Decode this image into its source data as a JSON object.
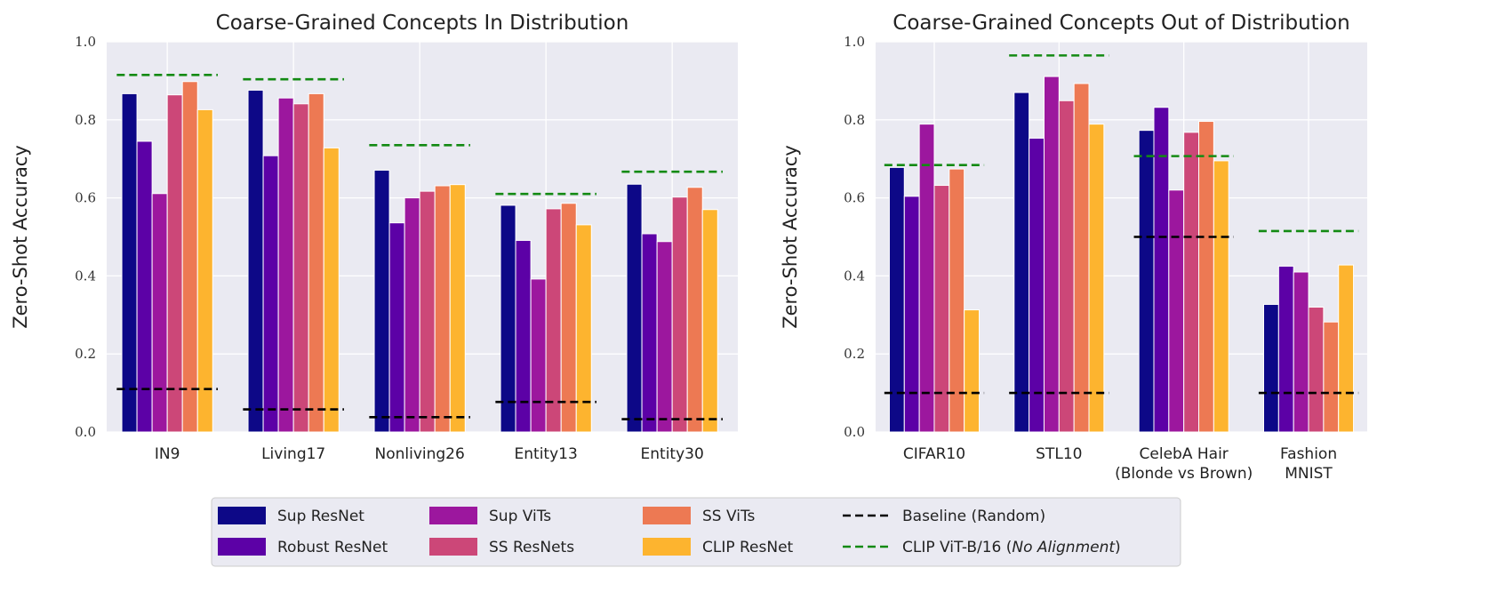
{
  "colors": {
    "background": "#eaeaf2",
    "grid": "#ffffff",
    "series": [
      "#0d0887",
      "#5c01a6",
      "#9c179e",
      "#cc4778",
      "#ed7953",
      "#fdb42f"
    ],
    "baseline": "#000000",
    "clip_vit": "#138a13"
  },
  "legend": {
    "placement": "bottom-center",
    "items": [
      {
        "label": "Sup ResNet",
        "kind": "patch",
        "color": "#0d0887"
      },
      {
        "label": "Robust ResNet",
        "kind": "patch",
        "color": "#5c01a6"
      },
      {
        "label": "Sup ViTs",
        "kind": "patch",
        "color": "#9c179e"
      },
      {
        "label": "SS ResNets",
        "kind": "patch",
        "color": "#cc4778"
      },
      {
        "label": "SS ViTs",
        "kind": "patch",
        "color": "#ed7953"
      },
      {
        "label": "CLIP ResNet",
        "kind": "patch",
        "color": "#fdb42f"
      },
      {
        "label": "Baseline (Random)",
        "kind": "dashed",
        "color": "#000000"
      },
      {
        "label": "CLIP ViT-B/16 (",
        "italic": "No Alignment",
        "suffix": ")",
        "kind": "dashed",
        "color": "#138a13"
      }
    ]
  },
  "chart_data": [
    {
      "type": "bar",
      "title": "Coarse-Grained Concepts In Distribution",
      "ylabel": "Zero-Shot Accuracy",
      "xlabel": "",
      "ylim": [
        0,
        1.0
      ],
      "yticks": [
        "0.0",
        "0.2",
        "0.4",
        "0.6",
        "0.8",
        "1.0"
      ],
      "grid": true,
      "categories": [
        [
          "IN9"
        ],
        [
          "Living17"
        ],
        [
          "Nonliving26"
        ],
        [
          "Entity13"
        ],
        [
          "Entity30"
        ]
      ],
      "series": [
        {
          "name": "Sup ResNet",
          "values": [
            0.867,
            0.876,
            0.671,
            0.581,
            0.635
          ]
        },
        {
          "name": "Robust ResNet",
          "values": [
            0.745,
            0.708,
            0.536,
            0.491,
            0.508
          ]
        },
        {
          "name": "Sup ViTs",
          "values": [
            0.611,
            0.856,
            0.6,
            0.392,
            0.488
          ]
        },
        {
          "name": "SS ResNets",
          "values": [
            0.864,
            0.841,
            0.617,
            0.572,
            0.602
          ]
        },
        {
          "name": "SS ViTs",
          "values": [
            0.898,
            0.867,
            0.631,
            0.586,
            0.627
          ]
        },
        {
          "name": "CLIP ResNet",
          "values": [
            0.826,
            0.728,
            0.634,
            0.531,
            0.57
          ]
        }
      ],
      "reference_lines": [
        {
          "name": "Baseline (Random)",
          "values": [
            0.11,
            0.058,
            0.038,
            0.077,
            0.033
          ]
        },
        {
          "name": "CLIP ViT-B/16 (No Alignment)",
          "values": [
            0.915,
            0.904,
            0.735,
            0.61,
            0.667
          ]
        }
      ]
    },
    {
      "type": "bar",
      "title": "Coarse-Grained Concepts Out of Distribution",
      "ylabel": "Zero-Shot Accuracy",
      "xlabel": "",
      "ylim": [
        0,
        1.0
      ],
      "yticks": [
        "0.0",
        "0.2",
        "0.4",
        "0.6",
        "0.8",
        "1.0"
      ],
      "grid": true,
      "categories": [
        [
          "CIFAR10"
        ],
        [
          "STL10"
        ],
        [
          "CelebA Hair",
          "(Blonde vs Brown)"
        ],
        [
          "Fashion",
          "MNIST"
        ]
      ],
      "series": [
        {
          "name": "Sup ResNet",
          "values": [
            0.678,
            0.87,
            0.773,
            0.327
          ]
        },
        {
          "name": "Robust ResNet",
          "values": [
            0.604,
            0.753,
            0.832,
            0.425
          ]
        },
        {
          "name": "Sup ViTs",
          "values": [
            0.789,
            0.911,
            0.62,
            0.41
          ]
        },
        {
          "name": "SS ResNets",
          "values": [
            0.632,
            0.849,
            0.768,
            0.32
          ]
        },
        {
          "name": "SS ViTs",
          "values": [
            0.674,
            0.893,
            0.796,
            0.282
          ]
        },
        {
          "name": "CLIP ResNet",
          "values": [
            0.313,
            0.789,
            0.695,
            0.428
          ]
        }
      ],
      "reference_lines": [
        {
          "name": "Baseline (Random)",
          "values": [
            0.1,
            0.1,
            0.5,
            0.1
          ]
        },
        {
          "name": "CLIP ViT-B/16 (No Alignment)",
          "values": [
            0.684,
            0.965,
            0.707,
            0.515
          ]
        }
      ]
    }
  ]
}
